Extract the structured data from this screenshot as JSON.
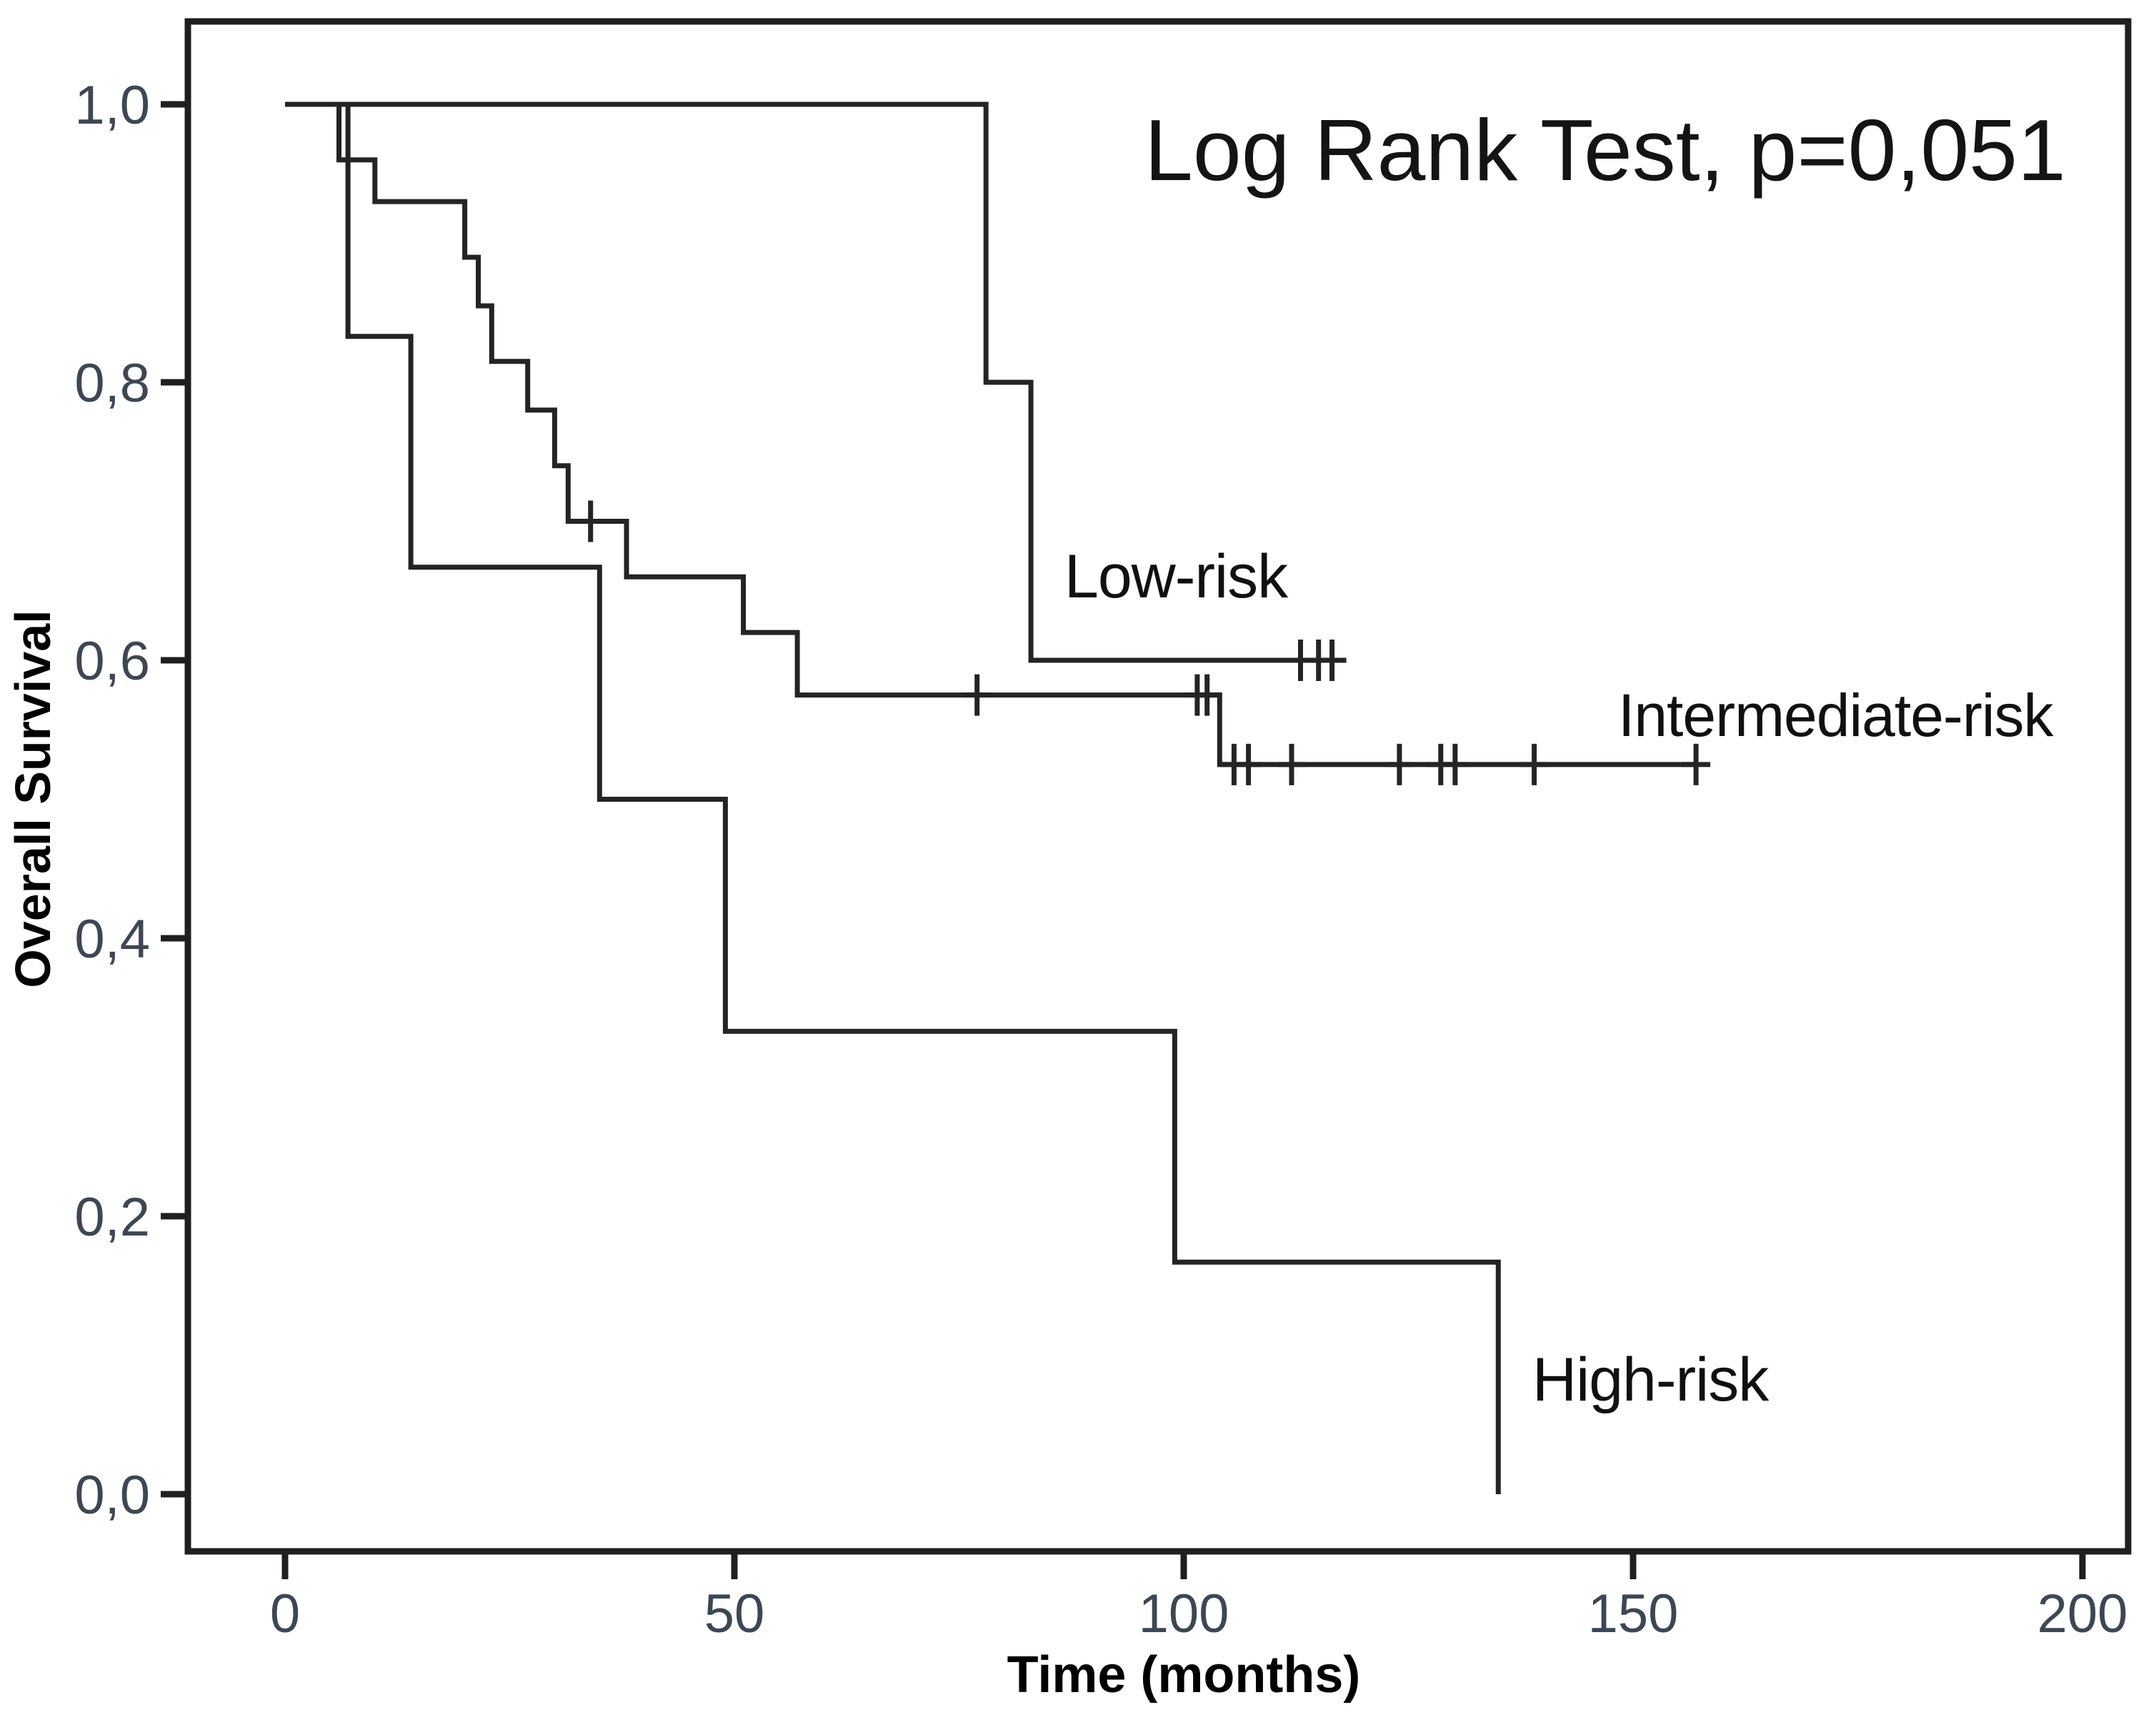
{
  "figure": {
    "annotation": "Log Rank Test, p=0,051",
    "x_axis_title": "Time (months)",
    "y_axis_title": "Overall Survival"
  },
  "colors": {
    "curve": "#242424",
    "frame": "#1f1f1f",
    "tick_label": "#3d4754",
    "label_text": "#101010",
    "background": "#ffffff"
  },
  "chart_data": {
    "type": "line",
    "subtype": "kaplan-meier-step-curves",
    "title": "",
    "annotation": "Log Rank Test, p=0,051",
    "xlabel": "Time (months)",
    "ylabel": "Overall Survival",
    "xlim": [
      0,
      215
    ],
    "ylim": [
      0,
      1.05
    ],
    "grid": "off",
    "legend": "inline-labels",
    "x_ticks": [
      {
        "value": 0,
        "label": "0"
      },
      {
        "value": 50,
        "label": "50"
      },
      {
        "value": 100,
        "label": "100"
      },
      {
        "value": 150,
        "label": "150"
      },
      {
        "value": 200,
        "label": "200"
      }
    ],
    "y_ticks": [
      {
        "value": 1.0,
        "label": "1,0"
      },
      {
        "value": 0.8,
        "label": "0,8"
      },
      {
        "value": 0.6,
        "label": "0,6"
      },
      {
        "value": 0.4,
        "label": "0,4"
      },
      {
        "value": 0.2,
        "label": "0,2"
      },
      {
        "value": 0.0,
        "label": "0,0"
      }
    ],
    "series": [
      {
        "name": "Low-risk",
        "key": "low-risk",
        "steps": [
          [
            0,
            1.0
          ],
          [
            78,
            0.8
          ],
          [
            83,
            0.6
          ]
        ],
        "censors": [
          [
            113,
            0.6
          ],
          [
            115,
            0.6
          ],
          [
            116.5,
            0.6
          ]
        ],
        "end_time": 118
      },
      {
        "name": "Intermediate-risk",
        "key": "intermediate-risk",
        "steps": [
          [
            0,
            1.0
          ],
          [
            6,
            0.96
          ],
          [
            10,
            0.93
          ],
          [
            20,
            0.89
          ],
          [
            21.5,
            0.855
          ],
          [
            23,
            0.815
          ],
          [
            27,
            0.78
          ],
          [
            30,
            0.74
          ],
          [
            31.5,
            0.7
          ],
          [
            38,
            0.66
          ],
          [
            51,
            0.62
          ],
          [
            57,
            0.575
          ],
          [
            104,
            0.525
          ]
        ],
        "censors": [
          [
            34,
            0.7
          ],
          [
            77,
            0.575
          ],
          [
            101.5,
            0.575
          ],
          [
            102.6,
            0.575
          ],
          [
            105.6,
            0.525
          ],
          [
            107.2,
            0.525
          ],
          [
            112,
            0.525
          ],
          [
            124,
            0.525
          ],
          [
            128.6,
            0.525
          ],
          [
            130.2,
            0.525
          ],
          [
            139,
            0.525
          ],
          [
            157,
            0.525
          ]
        ],
        "end_time": 157
      },
      {
        "name": "High-risk",
        "key": "high-risk",
        "steps": [
          [
            0,
            1.0
          ],
          [
            7,
            0.833
          ],
          [
            14,
            0.667
          ],
          [
            35,
            0.5
          ],
          [
            49,
            0.333
          ],
          [
            99,
            0.167
          ],
          [
            135,
            0.0
          ]
        ],
        "censors": [],
        "end_time": 135
      }
    ]
  }
}
